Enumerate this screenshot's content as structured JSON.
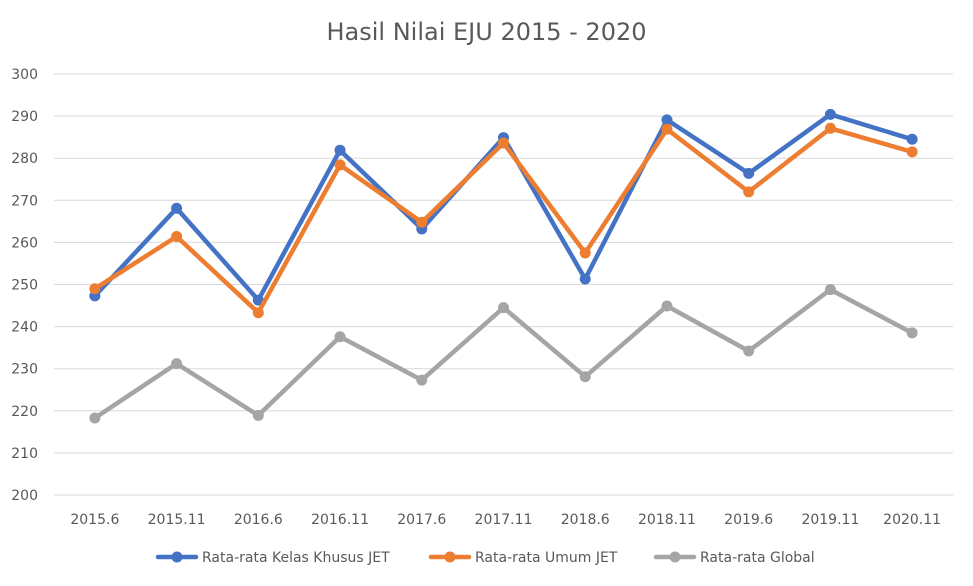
{
  "chart_data": {
    "type": "line",
    "title": "Hasil Nilai EJU 2015 - 2020",
    "xlabel": "",
    "ylabel": "",
    "categories": [
      "2015.6",
      "2015.11",
      "2016.6",
      "2016.11",
      "2017.6",
      "2017.11",
      "2018.6",
      "2018.11",
      "2019.6",
      "2019.11",
      "2020.11"
    ],
    "ylim": [
      200,
      300
    ],
    "yticks": [
      "200",
      "210",
      "220",
      "230",
      "240",
      "250",
      "260",
      "270",
      "280",
      "290",
      "300"
    ],
    "grid": true,
    "legend": "bottom",
    "series": [
      {
        "name": "Rata-rata Kelas Khusus JET",
        "color": "#4472C4",
        "values": [
          247.3,
          268.1,
          246.3,
          281.9,
          263.2,
          284.9,
          251.3,
          289.1,
          276.4,
          290.4,
          284.5
        ]
      },
      {
        "name": "Rata-rata Umum JET",
        "color": "#ED7D31",
        "values": [
          249.0,
          261.4,
          243.3,
          278.4,
          264.8,
          283.6,
          257.5,
          286.9,
          272.0,
          287.1,
          281.5
        ]
      },
      {
        "name": "Rata-rata Global",
        "color": "#A5A5A5",
        "values": [
          218.3,
          231.2,
          218.9,
          237.6,
          227.3,
          244.5,
          228.1,
          244.9,
          234.2,
          248.8,
          238.5
        ]
      }
    ]
  }
}
